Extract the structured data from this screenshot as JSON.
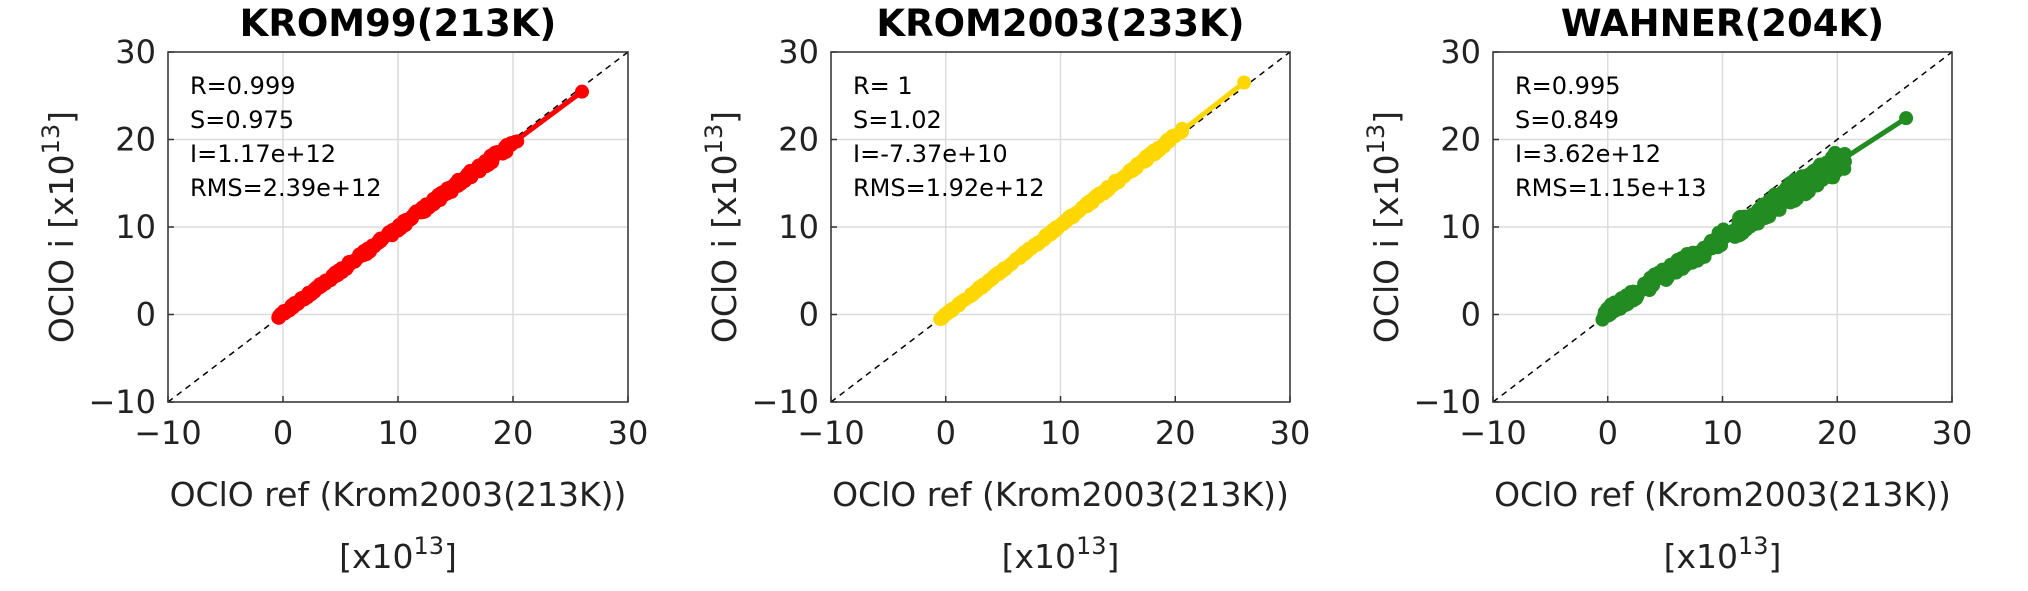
{
  "chart_data": [
    {
      "type": "scatter",
      "title": "KROM99(213K)",
      "xlabel": "OClO ref (Krom2003(213K))",
      "xlabel_unit": "[x10",
      "xlabel_exp": "13",
      "xlabel_unit_close": "]",
      "ylabel": "OClO i [x10",
      "ylabel_exp": "13",
      "ylabel_close": "]",
      "xlim": [
        -10,
        30
      ],
      "ylim": [
        -10,
        30
      ],
      "xticks": [
        "-10",
        "0",
        "10",
        "20",
        "30"
      ],
      "yticks": [
        "-10",
        "0",
        "10",
        "20",
        "30"
      ],
      "grid": true,
      "reference_line": "1:1 dashed",
      "color": "#ff0000",
      "stats": [
        "R=0.999",
        "S=0.975",
        "I=1.17e+12",
        "RMS=2.39e+12"
      ],
      "fit": {
        "slope": 0.975,
        "intercept": 0.117,
        "x_range": [
          -0.5,
          26
        ]
      },
      "scatter_spread": 0.35
    },
    {
      "type": "scatter",
      "title": "KROM2003(233K)",
      "xlabel": "OClO ref (Krom2003(213K))",
      "xlabel_unit": "[x10",
      "xlabel_exp": "13",
      "xlabel_unit_close": "]",
      "ylabel": "OClO i [x10",
      "ylabel_exp": "13",
      "ylabel_close": "]",
      "xlim": [
        -10,
        30
      ],
      "ylim": [
        -10,
        30
      ],
      "xticks": [
        "-10",
        "0",
        "10",
        "20",
        "30"
      ],
      "yticks": [
        "-10",
        "0",
        "10",
        "20",
        "30"
      ],
      "grid": true,
      "reference_line": "1:1 dashed",
      "color": "#ffd700",
      "stats": [
        "R= 1",
        "S=1.02",
        "I=-7.37e+10",
        "RMS=1.92e+12"
      ],
      "fit": {
        "slope": 1.02,
        "intercept": -0.00737,
        "x_range": [
          -0.5,
          26
        ]
      },
      "scatter_spread": 0.2
    },
    {
      "type": "scatter",
      "title": "WAHNER(204K)",
      "xlabel": "OClO ref (Krom2003(213K))",
      "xlabel_unit": "[x10",
      "xlabel_exp": "13",
      "xlabel_unit_close": "]",
      "ylabel": "OClO i [x10",
      "ylabel_exp": "13",
      "ylabel_close": "]",
      "xlim": [
        -10,
        30
      ],
      "ylim": [
        -10,
        30
      ],
      "xticks": [
        "-10",
        "0",
        "10",
        "20",
        "30"
      ],
      "yticks": [
        "-10",
        "0",
        "10",
        "20",
        "30"
      ],
      "grid": true,
      "reference_line": "1:1 dashed",
      "color": "#228b22",
      "stats": [
        "R=0.995",
        "S=0.849",
        "I=3.62e+12",
        "RMS=1.15e+13"
      ],
      "fit": {
        "slope": 0.849,
        "intercept": 0.362,
        "x_range": [
          -0.5,
          26
        ]
      },
      "scatter_spread": 1.0
    }
  ]
}
